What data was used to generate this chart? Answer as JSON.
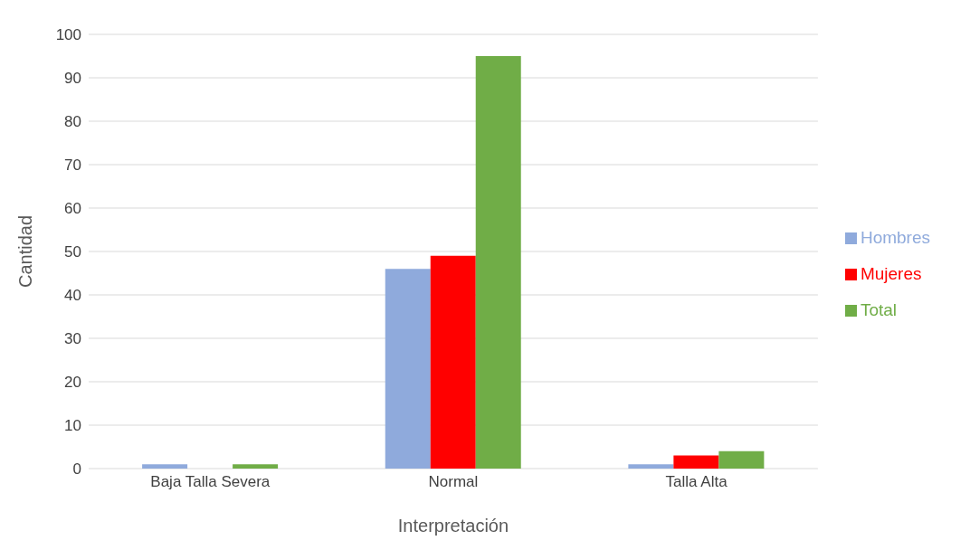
{
  "chart_data": {
    "type": "bar",
    "xlabel": "Interpretación",
    "ylabel": "Cantidad",
    "categories": [
      "Baja Talla Severa",
      "Normal",
      "Talla Alta"
    ],
    "series": [
      {
        "name": "Hombres",
        "color": "#8faadc",
        "values": [
          1,
          46,
          1
        ]
      },
      {
        "name": "Mujeres",
        "color": "#ff0000",
        "values": [
          0,
          49,
          3
        ]
      },
      {
        "name": "Total",
        "color": "#70ad47",
        "values": [
          1,
          95,
          4
        ]
      }
    ],
    "ylim": [
      0,
      100
    ],
    "yticks": [
      0,
      10,
      20,
      30,
      40,
      50,
      60,
      70,
      80,
      90,
      100
    ],
    "grid": "y",
    "legend": "right"
  }
}
